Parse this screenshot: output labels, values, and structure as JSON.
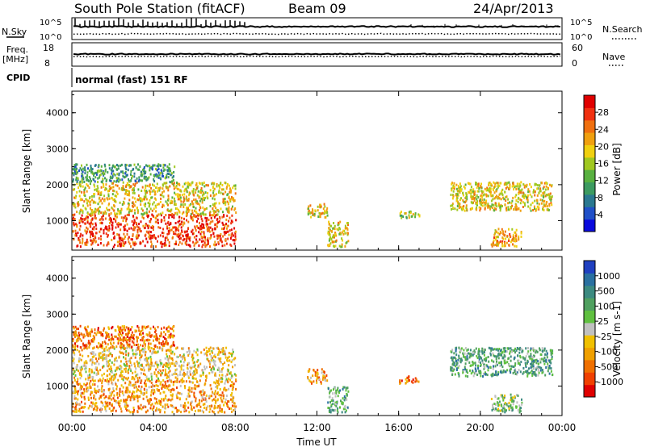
{
  "header": {
    "station": "South Pole Station (fitACF)",
    "beam": "Beam 09",
    "date": "24/Apr/2013"
  },
  "top_panels": {
    "nsky_label": "N.Sky",
    "nsky_ticks": [
      "10^5",
      "10^0"
    ],
    "nsearch_label": "N.Search",
    "nsearch_ticks": [
      "10^5",
      "10^0"
    ],
    "freq_label": "Freq.",
    "freq_unit": "[MHz]",
    "freq_ticks": [
      "18",
      "8"
    ],
    "nave_label": "Nave",
    "nave_ticks": [
      "60",
      "0"
    ],
    "cpid_label": "CPID",
    "cpid_value": "normal (fast) 151 RF"
  },
  "chart_data": [
    {
      "type": "heatmap",
      "name": "power",
      "ylabel": "Slant Range [km]",
      "xlabel": "Time UT",
      "xlim": [
        0,
        24
      ],
      "ylim": [
        180,
        4600
      ],
      "x_ticks": [
        "00:00",
        "04:00",
        "08:00",
        "12:00",
        "16:00",
        "20:00",
        "00:00"
      ],
      "y_ticks": [
        "1000",
        "2000",
        "3000",
        "4000"
      ],
      "colorbar": {
        "label": "Power [dB]",
        "ticks": [
          "4",
          "8",
          "12",
          "16",
          "20",
          "24",
          "28"
        ],
        "colors": [
          "#0a0adc",
          "#2050c8",
          "#2a7890",
          "#3c9a60",
          "#58b040",
          "#a0c820",
          "#f0d010",
          "#f0a010",
          "#f07010",
          "#f03010",
          "#e00000"
        ]
      },
      "clusters": [
        {
          "t": [
            0.0,
            8.0
          ],
          "r": [
            300,
            1200
          ],
          "level": 9
        },
        {
          "t": [
            0.0,
            8.0
          ],
          "r": [
            1200,
            2100
          ],
          "level": 6
        },
        {
          "t": [
            0.0,
            5.0
          ],
          "r": [
            2100,
            2600
          ],
          "level": 3
        },
        {
          "t": [
            11.5,
            12.5
          ],
          "r": [
            1100,
            1500
          ],
          "level": 6
        },
        {
          "t": [
            12.5,
            13.5
          ],
          "r": [
            300,
            1000
          ],
          "level": 6
        },
        {
          "t": [
            16.0,
            17.0
          ],
          "r": [
            1100,
            1300
          ],
          "level": 5
        },
        {
          "t": [
            18.5,
            23.5
          ],
          "r": [
            1300,
            2100
          ],
          "level": 6
        },
        {
          "t": [
            20.5,
            22.0
          ],
          "r": [
            300,
            800
          ],
          "level": 7
        }
      ]
    },
    {
      "type": "heatmap",
      "name": "velocity",
      "ylabel": "Slant Range [km]",
      "xlabel": "Time UT",
      "xlim": [
        0,
        24
      ],
      "ylim": [
        180,
        4600
      ],
      "x_ticks": [
        "00:00",
        "04:00",
        "08:00",
        "12:00",
        "16:00",
        "20:00",
        "00:00"
      ],
      "y_ticks": [
        "1000",
        "2000",
        "3000",
        "4000"
      ],
      "colorbar": {
        "label": "Velocity [m s-1]",
        "ticks": [
          "1000",
          "500",
          "100",
          "25",
          "-25",
          "-100",
          "-500",
          "-1000"
        ],
        "colors": [
          "#2040c0",
          "#2a70a0",
          "#3c8a80",
          "#50a060",
          "#60c040",
          "#c0c0c0",
          "#f0c000",
          "#f0a000",
          "#f07000",
          "#f04000",
          "#e00000"
        ]
      },
      "clusters": [
        {
          "t": [
            0.0,
            8.0
          ],
          "r": [
            300,
            1200
          ],
          "level": 7
        },
        {
          "t": [
            0.0,
            8.0
          ],
          "r": [
            1200,
            2100
          ],
          "level": 6
        },
        {
          "t": [
            0.0,
            5.0
          ],
          "r": [
            2100,
            2700
          ],
          "level": 8
        },
        {
          "t": [
            11.5,
            12.5
          ],
          "r": [
            1100,
            1500
          ],
          "level": 7
        },
        {
          "t": [
            12.5,
            13.5
          ],
          "r": [
            300,
            1000
          ],
          "level": 3
        },
        {
          "t": [
            16.0,
            17.0
          ],
          "r": [
            1100,
            1300
          ],
          "level": 8
        },
        {
          "t": [
            18.5,
            23.5
          ],
          "r": [
            1300,
            2100
          ],
          "level": 3
        },
        {
          "t": [
            20.5,
            22.0
          ],
          "r": [
            300,
            800
          ],
          "level": 4
        }
      ]
    }
  ]
}
